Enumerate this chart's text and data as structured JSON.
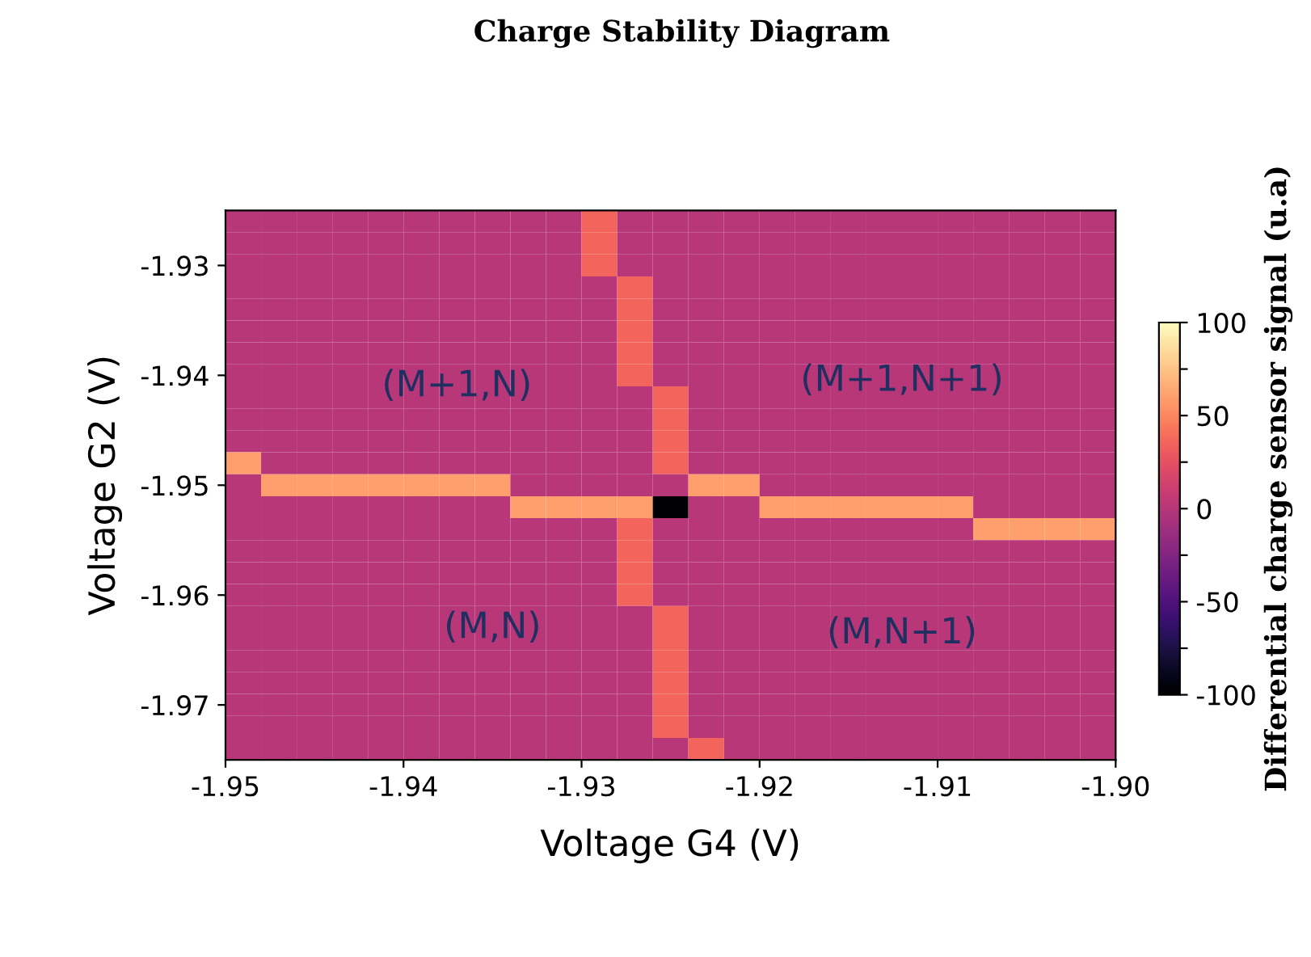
{
  "chart_data": {
    "type": "heatmap",
    "title": "Charge Stability Diagram",
    "xlabel": "Voltage G4 (V)",
    "ylabel": "Voltage G2 (V)",
    "clabel": "Differential charge sensor signal (u.a)",
    "xlim": [
      -1.95,
      -1.9
    ],
    "ylim": [
      -1.975,
      -1.925
    ],
    "xticks": [
      {
        "value": -1.95,
        "label": "-1.95"
      },
      {
        "value": -1.94,
        "label": "-1.94"
      },
      {
        "value": -1.93,
        "label": "-1.93"
      },
      {
        "value": -1.92,
        "label": "-1.92"
      },
      {
        "value": -1.91,
        "label": "-1.91"
      },
      {
        "value": -1.9,
        "label": "-1.90"
      }
    ],
    "yticks": [
      {
        "value": -1.93,
        "label": "-1.93"
      },
      {
        "value": -1.94,
        "label": "-1.94"
      },
      {
        "value": -1.95,
        "label": "-1.95"
      },
      {
        "value": -1.96,
        "label": "-1.96"
      },
      {
        "value": -1.97,
        "label": "-1.97"
      }
    ],
    "clim": [
      -100,
      100
    ],
    "cticks": [
      -100,
      {
        "value": -75,
        "label": null
      },
      -50,
      {
        "value": -25,
        "label": null
      },
      0,
      {
        "value": 25,
        "label": null
      },
      50,
      {
        "value": 75,
        "label": null
      },
      100
    ],
    "annotations": [
      "(M+1,N)",
      "(M+1,N+1)",
      "(M,N)",
      "(M,N+1)"
    ],
    "cells": [
      [
        0,
        0,
        0,
        0,
        0,
        0,
        0,
        0,
        0,
        0,
        35,
        0,
        0,
        0,
        0,
        0,
        0,
        0,
        0,
        0,
        0,
        0,
        0,
        0,
        0
      ],
      [
        0,
        0,
        0,
        0,
        0,
        0,
        0,
        0,
        0,
        0,
        35,
        0,
        0,
        0,
        0,
        0,
        0,
        0,
        0,
        0,
        0,
        0,
        0,
        0,
        0
      ],
      [
        0,
        0,
        0,
        0,
        0,
        0,
        0,
        0,
        0,
        0,
        35,
        0,
        0,
        0,
        0,
        0,
        0,
        0,
        0,
        0,
        0,
        0,
        0,
        0,
        0
      ],
      [
        0,
        0,
        0,
        0,
        0,
        0,
        0,
        0,
        0,
        0,
        0,
        35,
        0,
        0,
        0,
        0,
        0,
        0,
        0,
        0,
        0,
        0,
        0,
        0,
        0
      ],
      [
        0,
        0,
        0,
        0,
        0,
        0,
        0,
        0,
        0,
        0,
        0,
        35,
        0,
        0,
        0,
        0,
        0,
        0,
        0,
        0,
        0,
        0,
        0,
        0,
        0
      ],
      [
        0,
        0,
        0,
        0,
        0,
        0,
        0,
        0,
        0,
        0,
        0,
        35,
        0,
        0,
        0,
        0,
        0,
        0,
        0,
        0,
        0,
        0,
        0,
        0,
        0
      ],
      [
        0,
        0,
        0,
        0,
        0,
        0,
        0,
        0,
        0,
        0,
        0,
        35,
        0,
        0,
        0,
        0,
        0,
        0,
        0,
        0,
        0,
        0,
        0,
        0,
        0
      ],
      [
        0,
        0,
        0,
        0,
        0,
        0,
        0,
        0,
        0,
        0,
        0,
        35,
        0,
        0,
        0,
        0,
        0,
        0,
        0,
        0,
        0,
        0,
        0,
        0,
        0
      ],
      [
        0,
        0,
        0,
        0,
        0,
        0,
        0,
        0,
        0,
        0,
        0,
        0,
        35,
        0,
        0,
        0,
        0,
        0,
        0,
        0,
        0,
        0,
        0,
        0,
        0
      ],
      [
        0,
        0,
        0,
        0,
        0,
        0,
        0,
        0,
        0,
        0,
        0,
        0,
        35,
        0,
        0,
        0,
        0,
        0,
        0,
        0,
        0,
        0,
        0,
        0,
        0
      ],
      [
        0,
        0,
        0,
        0,
        0,
        0,
        0,
        0,
        0,
        0,
        0,
        0,
        35,
        0,
        0,
        0,
        0,
        0,
        0,
        0,
        0,
        0,
        0,
        0,
        0
      ],
      [
        60,
        0,
        0,
        0,
        0,
        0,
        0,
        0,
        0,
        0,
        0,
        0,
        35,
        0,
        0,
        0,
        0,
        0,
        0,
        0,
        0,
        0,
        0,
        0,
        0
      ],
      [
        0,
        60,
        60,
        60,
        60,
        60,
        60,
        60,
        0,
        0,
        0,
        0,
        0,
        60,
        60,
        0,
        0,
        0,
        0,
        0,
        0,
        0,
        0,
        0,
        0
      ],
      [
        0,
        0,
        0,
        0,
        0,
        0,
        0,
        0,
        60,
        60,
        60,
        60,
        -100,
        0,
        0,
        60,
        60,
        60,
        60,
        60,
        60,
        0,
        0,
        0,
        0
      ],
      [
        0,
        0,
        0,
        0,
        0,
        0,
        0,
        0,
        0,
        0,
        0,
        35,
        0,
        0,
        0,
        0,
        0,
        0,
        0,
        0,
        0,
        60,
        60,
        60,
        60
      ],
      [
        0,
        0,
        0,
        0,
        0,
        0,
        0,
        0,
        0,
        0,
        0,
        35,
        0,
        0,
        0,
        0,
        0,
        0,
        0,
        0,
        0,
        0,
        0,
        0,
        0
      ],
      [
        0,
        0,
        0,
        0,
        0,
        0,
        0,
        0,
        0,
        0,
        0,
        35,
        0,
        0,
        0,
        0,
        0,
        0,
        0,
        0,
        0,
        0,
        0,
        0,
        0
      ],
      [
        0,
        0,
        0,
        0,
        0,
        0,
        0,
        0,
        0,
        0,
        0,
        35,
        0,
        0,
        0,
        0,
        0,
        0,
        0,
        0,
        0,
        0,
        0,
        0,
        0
      ],
      [
        0,
        0,
        0,
        0,
        0,
        0,
        0,
        0,
        0,
        0,
        0,
        0,
        35,
        0,
        0,
        0,
        0,
        0,
        0,
        0,
        0,
        0,
        0,
        0,
        0
      ],
      [
        0,
        0,
        0,
        0,
        0,
        0,
        0,
        0,
        0,
        0,
        0,
        0,
        35,
        0,
        0,
        0,
        0,
        0,
        0,
        0,
        0,
        0,
        0,
        0,
        0
      ],
      [
        0,
        0,
        0,
        0,
        0,
        0,
        0,
        0,
        0,
        0,
        0,
        0,
        35,
        0,
        0,
        0,
        0,
        0,
        0,
        0,
        0,
        0,
        0,
        0,
        0
      ],
      [
        0,
        0,
        0,
        0,
        0,
        0,
        0,
        0,
        0,
        0,
        0,
        0,
        35,
        0,
        0,
        0,
        0,
        0,
        0,
        0,
        0,
        0,
        0,
        0,
        0
      ],
      [
        0,
        0,
        0,
        0,
        0,
        0,
        0,
        0,
        0,
        0,
        0,
        0,
        35,
        0,
        0,
        0,
        0,
        0,
        0,
        0,
        0,
        0,
        0,
        0,
        0
      ],
      [
        0,
        0,
        0,
        0,
        0,
        0,
        0,
        0,
        0,
        0,
        0,
        0,
        35,
        0,
        0,
        0,
        0,
        0,
        0,
        0,
        0,
        0,
        0,
        0,
        0
      ],
      [
        0,
        0,
        0,
        0,
        0,
        0,
        0,
        0,
        0,
        0,
        0,
        0,
        0,
        35,
        0,
        0,
        0,
        0,
        0,
        0,
        0,
        0,
        0,
        0,
        0
      ]
    ]
  }
}
